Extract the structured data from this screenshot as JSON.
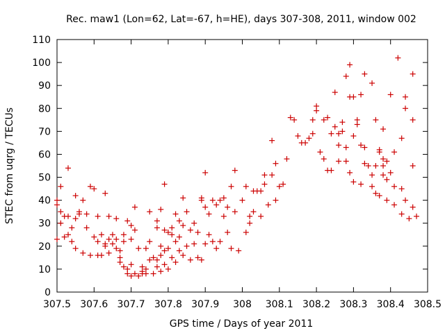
{
  "chart_data": {
    "type": "scatter",
    "title": "Rec. maw1 (Lon=62, Lat=-67, h=HE), days 307-308, 2011, window 002",
    "xlabel": "GPS time / Days of year 2011",
    "ylabel": "STEC from uqrg / TECUs",
    "xlim": [
      307.5,
      308.5
    ],
    "ylim": [
      0,
      110
    ],
    "xticks": [
      307.5,
      307.6,
      307.7,
      307.8,
      307.9,
      308.0,
      308.1,
      308.2,
      308.3,
      308.4,
      308.5
    ],
    "xtick_labels": [
      "307.5",
      "307.6",
      "307.7",
      "307.8",
      "307.9",
      "308",
      "308.1",
      "308.2",
      "308.3",
      "308.4",
      "308.5"
    ],
    "yticks": [
      0,
      10,
      20,
      30,
      40,
      50,
      60,
      70,
      80,
      90,
      100,
      110
    ],
    "ytick_labels": [
      "0",
      "10",
      "20",
      "30",
      "40",
      "50",
      "60",
      "70",
      "80",
      "90",
      "100",
      "110"
    ],
    "marker": "+",
    "color": "#cc0000",
    "series": [
      {
        "name": "STEC",
        "points": [
          [
            307.5,
            38
          ],
          [
            307.5,
            40
          ],
          [
            307.5,
            23
          ],
          [
            307.51,
            46
          ],
          [
            307.51,
            35
          ],
          [
            307.51,
            30
          ],
          [
            307.52,
            33
          ],
          [
            307.52,
            24
          ],
          [
            307.53,
            54
          ],
          [
            307.53,
            33
          ],
          [
            307.53,
            25
          ],
          [
            307.54,
            28
          ],
          [
            307.54,
            22
          ],
          [
            307.55,
            32
          ],
          [
            307.55,
            19
          ],
          [
            307.55,
            42
          ],
          [
            307.56,
            35
          ],
          [
            307.56,
            34
          ],
          [
            307.57,
            40
          ],
          [
            307.57,
            17
          ],
          [
            307.58,
            34
          ],
          [
            307.58,
            28
          ],
          [
            307.59,
            46
          ],
          [
            307.59,
            16
          ],
          [
            307.6,
            45
          ],
          [
            307.6,
            24
          ],
          [
            307.61,
            33
          ],
          [
            307.61,
            22
          ],
          [
            307.61,
            16
          ],
          [
            307.62,
            16
          ],
          [
            307.62,
            25
          ],
          [
            307.63,
            20
          ],
          [
            307.63,
            21
          ],
          [
            307.63,
            43
          ],
          [
            307.64,
            33
          ],
          [
            307.64,
            17
          ],
          [
            307.64,
            23
          ],
          [
            307.65,
            21
          ],
          [
            307.65,
            25
          ],
          [
            307.66,
            19
          ],
          [
            307.66,
            23
          ],
          [
            307.66,
            32
          ],
          [
            307.67,
            18
          ],
          [
            307.67,
            15
          ],
          [
            307.67,
            13
          ],
          [
            307.68,
            22
          ],
          [
            307.68,
            11
          ],
          [
            307.68,
            25
          ],
          [
            307.69,
            31
          ],
          [
            307.69,
            10
          ],
          [
            307.69,
            8
          ],
          [
            307.7,
            23
          ],
          [
            307.7,
            29
          ],
          [
            307.7,
            7
          ],
          [
            307.7,
            12
          ],
          [
            307.71,
            37
          ],
          [
            307.71,
            27
          ],
          [
            307.71,
            8
          ],
          [
            307.72,
            7
          ],
          [
            307.72,
            19
          ],
          [
            307.73,
            11
          ],
          [
            307.73,
            8
          ],
          [
            307.73,
            9
          ],
          [
            307.74,
            19
          ],
          [
            307.74,
            10
          ],
          [
            307.74,
            8
          ],
          [
            307.75,
            35
          ],
          [
            307.75,
            22
          ],
          [
            307.75,
            14
          ],
          [
            307.76,
            15
          ],
          [
            307.76,
            8
          ],
          [
            307.77,
            31
          ],
          [
            307.77,
            28
          ],
          [
            307.77,
            14
          ],
          [
            307.77,
            11
          ],
          [
            307.78,
            36
          ],
          [
            307.78,
            20
          ],
          [
            307.78,
            9
          ],
          [
            307.78,
            16
          ],
          [
            307.79,
            47
          ],
          [
            307.79,
            27
          ],
          [
            307.79,
            18
          ],
          [
            307.79,
            12
          ],
          [
            307.8,
            26
          ],
          [
            307.8,
            19
          ],
          [
            307.8,
            10
          ],
          [
            307.81,
            28
          ],
          [
            307.81,
            15
          ],
          [
            307.81,
            25
          ],
          [
            307.82,
            34
          ],
          [
            307.82,
            22
          ],
          [
            307.82,
            13
          ],
          [
            307.83,
            31
          ],
          [
            307.83,
            18
          ],
          [
            307.83,
            24
          ],
          [
            307.84,
            41
          ],
          [
            307.84,
            29
          ],
          [
            307.84,
            16
          ],
          [
            307.85,
            35
          ],
          [
            307.85,
            20
          ],
          [
            307.86,
            27
          ],
          [
            307.86,
            14
          ],
          [
            307.87,
            30
          ],
          [
            307.87,
            21
          ],
          [
            307.88,
            15
          ],
          [
            307.88,
            26
          ],
          [
            307.89,
            40
          ],
          [
            307.89,
            41
          ],
          [
            307.89,
            14
          ],
          [
            307.9,
            52
          ],
          [
            307.9,
            37
          ],
          [
            307.9,
            21
          ],
          [
            307.91,
            34
          ],
          [
            307.91,
            25
          ],
          [
            307.92,
            40
          ],
          [
            307.92,
            22
          ],
          [
            307.93,
            38
          ],
          [
            307.93,
            19
          ],
          [
            307.94,
            40
          ],
          [
            307.94,
            22
          ],
          [
            307.95,
            41
          ],
          [
            307.95,
            33
          ],
          [
            307.96,
            37
          ],
          [
            307.96,
            26
          ],
          [
            307.97,
            46
          ],
          [
            307.97,
            19
          ],
          [
            307.98,
            53
          ],
          [
            307.98,
            35
          ],
          [
            307.99,
            18
          ],
          [
            308.0,
            40
          ],
          [
            308.01,
            46
          ],
          [
            308.01,
            26
          ],
          [
            308.02,
            33
          ],
          [
            308.02,
            30
          ],
          [
            308.03,
            44
          ],
          [
            308.03,
            35
          ],
          [
            308.04,
            44
          ],
          [
            308.05,
            44
          ],
          [
            308.05,
            33
          ],
          [
            308.06,
            47
          ],
          [
            308.06,
            51
          ],
          [
            308.07,
            38
          ],
          [
            308.08,
            66
          ],
          [
            308.08,
            51
          ],
          [
            308.09,
            56
          ],
          [
            308.09,
            40
          ],
          [
            308.1,
            46
          ],
          [
            308.11,
            47
          ],
          [
            308.12,
            58
          ],
          [
            308.13,
            76
          ],
          [
            308.14,
            75
          ],
          [
            308.15,
            68
          ],
          [
            308.16,
            65
          ],
          [
            308.17,
            65
          ],
          [
            308.18,
            67
          ],
          [
            308.19,
            69
          ],
          [
            308.19,
            75
          ],
          [
            308.2,
            81
          ],
          [
            308.2,
            79
          ],
          [
            308.21,
            61
          ],
          [
            308.22,
            75
          ],
          [
            308.22,
            58
          ],
          [
            308.23,
            76
          ],
          [
            308.23,
            53
          ],
          [
            308.24,
            69
          ],
          [
            308.24,
            53
          ],
          [
            308.25,
            87
          ],
          [
            308.25,
            72
          ],
          [
            308.26,
            69
          ],
          [
            308.26,
            64
          ],
          [
            308.26,
            57
          ],
          [
            308.27,
            70
          ],
          [
            308.27,
            74
          ],
          [
            308.28,
            94
          ],
          [
            308.28,
            63
          ],
          [
            308.28,
            57
          ],
          [
            308.29,
            99
          ],
          [
            308.29,
            85
          ],
          [
            308.29,
            52
          ],
          [
            308.3,
            68
          ],
          [
            308.3,
            85
          ],
          [
            308.3,
            48
          ],
          [
            308.31,
            75
          ],
          [
            308.31,
            73
          ],
          [
            308.32,
            86
          ],
          [
            308.32,
            64
          ],
          [
            308.32,
            47
          ],
          [
            308.33,
            95
          ],
          [
            308.33,
            63
          ],
          [
            308.33,
            56
          ],
          [
            308.34,
            55
          ],
          [
            308.35,
            91
          ],
          [
            308.35,
            51
          ],
          [
            308.35,
            46
          ],
          [
            308.36,
            75
          ],
          [
            308.36,
            55
          ],
          [
            308.36,
            43
          ],
          [
            308.37,
            61
          ],
          [
            308.37,
            62
          ],
          [
            308.37,
            42
          ],
          [
            308.38,
            71
          ],
          [
            308.38,
            58
          ],
          [
            308.38,
            55
          ],
          [
            308.38,
            51
          ],
          [
            308.39,
            57
          ],
          [
            308.39,
            49
          ],
          [
            308.39,
            40
          ],
          [
            308.4,
            86
          ],
          [
            308.4,
            52
          ],
          [
            308.41,
            61
          ],
          [
            308.41,
            46
          ],
          [
            308.41,
            38
          ],
          [
            308.42,
            102
          ],
          [
            308.43,
            67
          ],
          [
            308.43,
            45
          ],
          [
            308.43,
            34
          ],
          [
            308.44,
            85
          ],
          [
            308.44,
            80
          ],
          [
            308.44,
            40
          ],
          [
            308.45,
            32
          ],
          [
            308.46,
            95
          ],
          [
            308.46,
            75
          ],
          [
            308.46,
            55
          ],
          [
            308.46,
            37
          ],
          [
            308.47,
            33
          ]
        ]
      }
    ]
  }
}
